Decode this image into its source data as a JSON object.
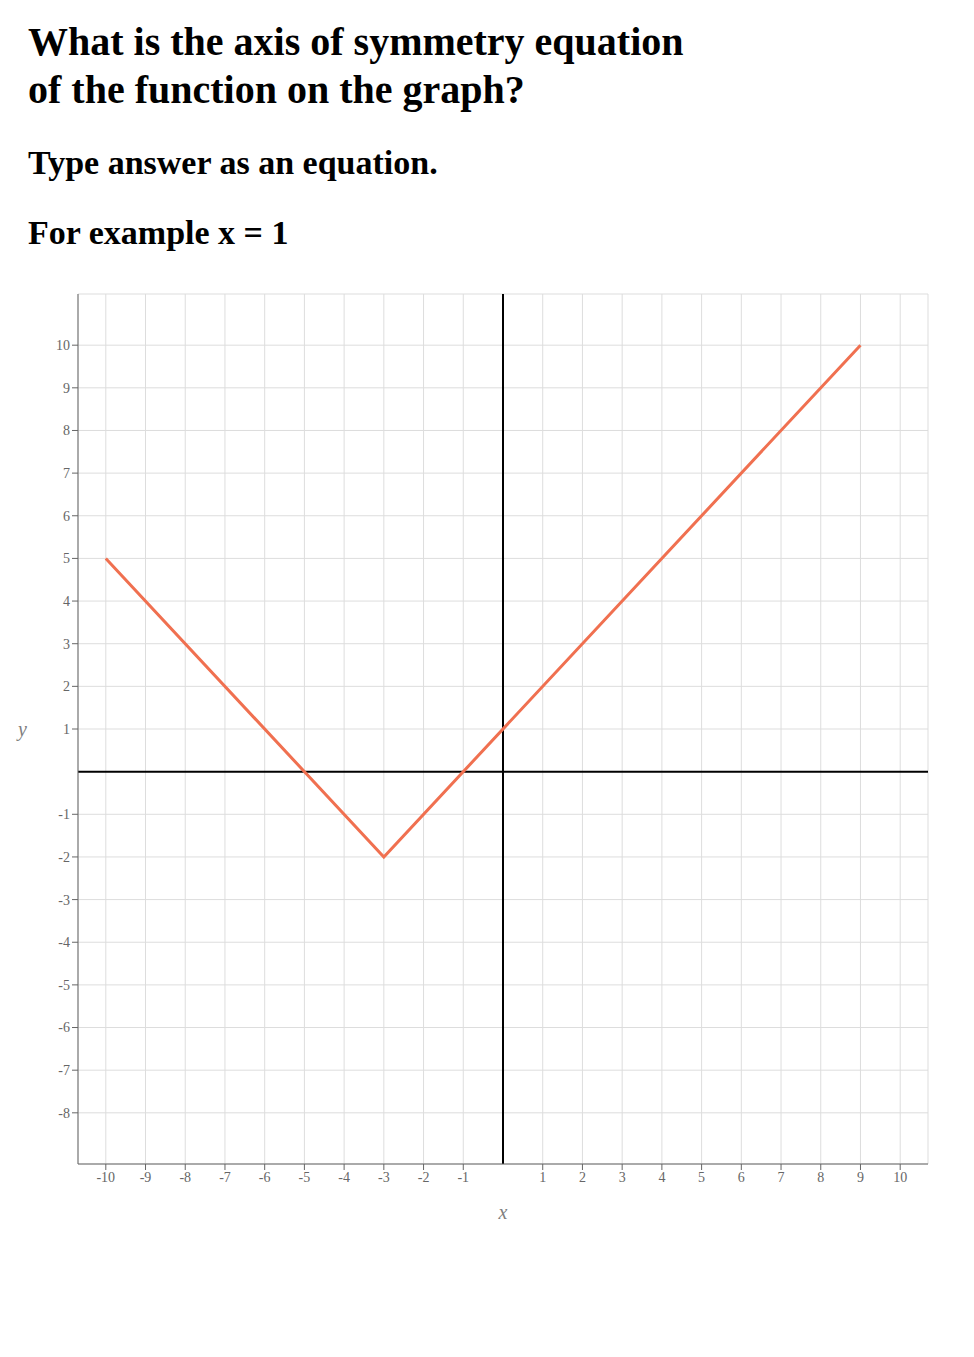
{
  "chart_data": {
    "type": "line",
    "title": [
      "What is the axis of symmetry equation",
      "of the function on the graph?"
    ],
    "subtitle": [
      "Type answer as an equation.",
      "For example x = 1"
    ],
    "x_label": "x",
    "y_label": "y",
    "x": [
      -10,
      -3,
      9
    ],
    "values": [
      5,
      -2,
      10
    ],
    "color": "#f07050",
    "xlim": [
      -10.7,
      10.7
    ],
    "ylim": [
      -9.2,
      11.2
    ],
    "xticks": [
      -10,
      -9,
      -8,
      -7,
      -6,
      -5,
      -4,
      -3,
      -2,
      -1,
      1,
      2,
      3,
      4,
      5,
      6,
      7,
      8,
      9,
      10
    ],
    "yticks": [
      -8,
      -7,
      -6,
      -5,
      -4,
      -3,
      -2,
      -1,
      1,
      2,
      3,
      4,
      5,
      6,
      7,
      8,
      9,
      10
    ],
    "grid": true
  }
}
